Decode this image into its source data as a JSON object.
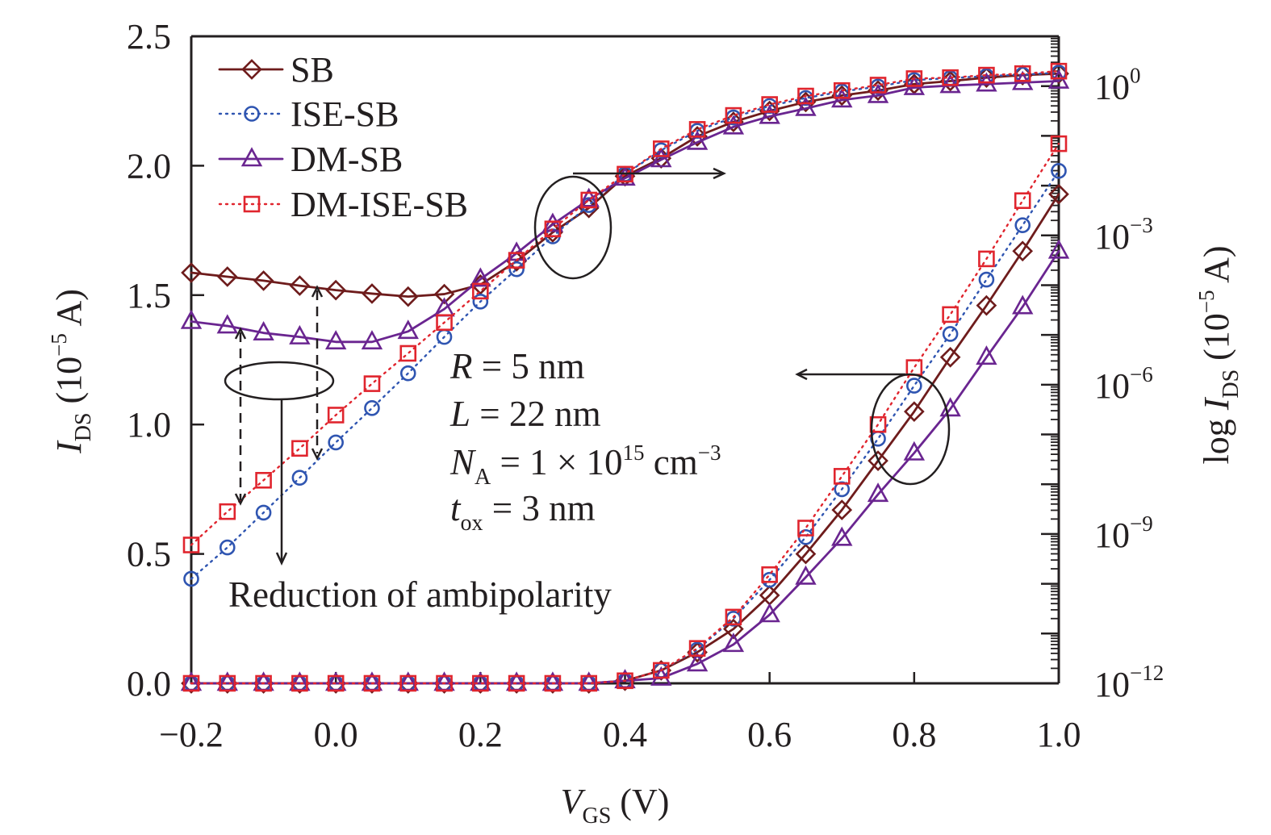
{
  "chart_data": {
    "type": "line",
    "title": "",
    "xlabel": {
      "main": "V",
      "sub": "GS",
      "unit": " (V)"
    },
    "ylabel_left": {
      "main": "I",
      "sub": "DS",
      "unit_pre": " (10",
      "unit_sup": "−5",
      "unit_post": " A)"
    },
    "ylabel_right": {
      "prefix": "log ",
      "main": "I",
      "sub": "DS",
      "unit_pre": " (10",
      "unit_sup": "−5",
      "unit_post": " A)"
    },
    "xlim": [
      -0.2,
      1.0
    ],
    "ylim_left": [
      0.0,
      2.5
    ],
    "ylim_right_log10": [
      -12,
      1
    ],
    "x_ticks": [
      "−0.2",
      "0.0",
      "0.2",
      "0.4",
      "0.6",
      "0.8",
      "1.0"
    ],
    "x_tick_values": [
      -0.2,
      0.0,
      0.2,
      0.4,
      0.6,
      0.8,
      1.0
    ],
    "y_left_ticks": [
      "0.0",
      "0.5",
      "1.0",
      "1.5",
      "2.0",
      "2.5"
    ],
    "y_left_tick_values": [
      0.0,
      0.5,
      1.0,
      1.5,
      2.0,
      2.5
    ],
    "y_right_ticks": [
      {
        "base": "10",
        "exp": "0",
        "value": 0
      },
      {
        "base": "10",
        "exp": "−3",
        "value": -3
      },
      {
        "base": "10",
        "exp": "−6",
        "value": -6
      },
      {
        "base": "10",
        "exp": "−9",
        "value": -9
      },
      {
        "base": "10",
        "exp": "−12",
        "value": -12
      }
    ],
    "grid": false,
    "legend_position": "top-left",
    "x": [
      -0.2,
      -0.15,
      -0.1,
      -0.05,
      0.0,
      0.05,
      0.1,
      0.15,
      0.2,
      0.25,
      0.3,
      0.35,
      0.4,
      0.45,
      0.5,
      0.55,
      0.6,
      0.65,
      0.7,
      0.75,
      0.8,
      0.85,
      0.9,
      0.95,
      1.0
    ],
    "series": [
      {
        "name": "SB",
        "color": "#6e1c1c",
        "marker": "diamond",
        "line": "solid",
        "linear_values": [
          0,
          0,
          0,
          0,
          0,
          0,
          0,
          0,
          0,
          0,
          0,
          0,
          0.01,
          0.05,
          0.12,
          0.21,
          0.34,
          0.5,
          0.67,
          0.86,
          1.05,
          1.26,
          1.46,
          1.67,
          1.89
        ],
        "log10_values": [
          -3.75,
          -3.83,
          -3.91,
          -4.01,
          -4.1,
          -4.17,
          -4.23,
          -4.18,
          -3.99,
          -3.52,
          -2.94,
          -2.45,
          -1.81,
          -1.45,
          -1.01,
          -0.72,
          -0.5,
          -0.32,
          -0.19,
          -0.09,
          0.04,
          0.1,
          0.17,
          0.22,
          0.25
        ]
      },
      {
        "name": "ISE-SB",
        "color": "#2f55b1",
        "marker": "circle",
        "line": "dotted",
        "linear_values": [
          0,
          0,
          0,
          0,
          0,
          0,
          0,
          0,
          0,
          0,
          0,
          0,
          0.01,
          0.05,
          0.13,
          0.25,
          0.4,
          0.565,
          0.75,
          0.945,
          1.15,
          1.35,
          1.56,
          1.77,
          1.98
        ],
        "log10_values": [
          -9.9,
          -9.27,
          -8.57,
          -7.87,
          -7.16,
          -6.47,
          -5.77,
          -5.04,
          -4.33,
          -3.68,
          -3.02,
          -2.39,
          -1.77,
          -1.29,
          -0.9,
          -0.63,
          -0.4,
          -0.24,
          -0.11,
          -0.01,
          0.12,
          0.16,
          0.2,
          0.23,
          0.27
        ]
      },
      {
        "name": "DM-SB",
        "color": "#6a2590",
        "marker": "triangle",
        "line": "solid",
        "linear_values": [
          0,
          0,
          0,
          0,
          0,
          0,
          0,
          0,
          0,
          0,
          0,
          0,
          0.01,
          0.02,
          0.075,
          0.15,
          0.265,
          0.41,
          0.56,
          0.73,
          0.89,
          1.06,
          1.26,
          1.455,
          1.67
        ],
        "log10_values": [
          -4.73,
          -4.82,
          -4.96,
          -5.04,
          -5.14,
          -5.14,
          -4.93,
          -4.48,
          -3.88,
          -3.36,
          -2.78,
          -2.28,
          -1.85,
          -1.48,
          -1.13,
          -0.82,
          -0.61,
          -0.45,
          -0.28,
          -0.19,
          -0.03,
          0.01,
          0.04,
          0.07,
          0.1
        ]
      },
      {
        "name": "DM-ISE-SB",
        "color": "#e0252e",
        "marker": "square",
        "line": "dotted",
        "linear_values": [
          0,
          0,
          0,
          0,
          0,
          0,
          0,
          0,
          0,
          0,
          0,
          0,
          0.01,
          0.05,
          0.135,
          0.256,
          0.42,
          0.6,
          0.8,
          1.0,
          1.22,
          1.425,
          1.64,
          1.865,
          2.085
        ],
        "log10_values": [
          -9.22,
          -8.55,
          -7.92,
          -7.28,
          -6.61,
          -5.98,
          -5.37,
          -4.75,
          -4.12,
          -3.5,
          -2.87,
          -2.29,
          -1.77,
          -1.26,
          -0.87,
          -0.59,
          -0.37,
          -0.2,
          -0.09,
          0.02,
          0.15,
          0.17,
          0.22,
          0.25,
          0.3
        ]
      }
    ],
    "annotations": {
      "params": [
        {
          "main": "R",
          "sub": "",
          "rest": " = 5 nm",
          "sup": "",
          "tail": ""
        },
        {
          "main": "L",
          "sub": "",
          "rest": " = 22 nm",
          "sup": "",
          "tail": ""
        },
        {
          "main": "N",
          "sub": "A",
          "rest": " =  1 × 10",
          "sup": "15",
          "tail": " cm",
          "sup2": "−3"
        },
        {
          "main": "t",
          "sub": "ox",
          "rest": " = 3 nm",
          "sup": "",
          "tail": ""
        }
      ],
      "ambipolarity_note": "Reduction of ambipolarity",
      "log_group_arrow": "right",
      "linear_group_arrow": "left"
    }
  }
}
